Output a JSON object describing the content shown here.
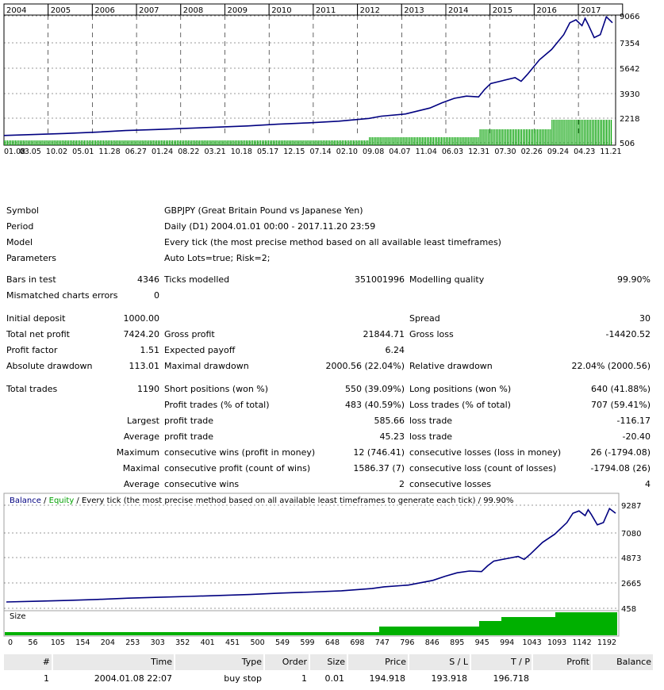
{
  "top_chart": {
    "years": [
      "2004",
      "2005",
      "2006",
      "2007",
      "2008",
      "2009",
      "2010",
      "2011",
      "2012",
      "2013",
      "2014",
      "2015",
      "2016",
      "2017"
    ],
    "y_ticks": [
      "9066",
      "7354",
      "5642",
      "3930",
      "2218",
      "506"
    ],
    "x_ticks": [
      "01.08",
      "03.05",
      "10.02",
      "05.01",
      "11.28",
      "06.27",
      "01.24",
      "08.22",
      "03.21",
      "10.18",
      "05.17",
      "12.15",
      "07.14",
      "02.10",
      "09.08",
      "04.07",
      "11.04",
      "06.03",
      "12.31",
      "07.30",
      "02.26",
      "09.24",
      "04.23",
      "11.21"
    ],
    "line_color": "#000080",
    "bar_color": "#00a000"
  },
  "report": {
    "symbol_label": "Symbol",
    "symbol_value": "GBPJPY (Great Britain Pound vs Japanese Yen)",
    "period_label": "Period",
    "period_value": "Daily (D1) 2004.01.01 00:00 - 2017.11.20 23:59",
    "model_label": "Model",
    "model_value": "Every tick (the most precise method based on all available least timeframes)",
    "parameters_label": "Parameters",
    "parameters_value": "Auto Lots=true; Risk=2;",
    "bars_label": "Bars in test",
    "bars_value": "4346",
    "ticks_label": "Ticks modelled",
    "ticks_value": "351001996",
    "quality_label": "Modelling quality",
    "quality_value": "99.90%",
    "mismatch_label": "Mismatched charts errors",
    "mismatch_value": "0",
    "initial_deposit_label": "Initial deposit",
    "initial_deposit_value": "1000.00",
    "spread_label": "Spread",
    "spread_value": "30",
    "net_profit_label": "Total net profit",
    "net_profit_value": "7424.20",
    "gross_profit_label": "Gross profit",
    "gross_profit_value": "21844.71",
    "gross_loss_label": "Gross loss",
    "gross_loss_value": "-14420.52",
    "profit_factor_label": "Profit factor",
    "profit_factor_value": "1.51",
    "expected_payoff_label": "Expected payoff",
    "expected_payoff_value": "6.24",
    "abs_drawdown_label": "Absolute drawdown",
    "abs_drawdown_value": "113.01",
    "max_drawdown_label": "Maximal drawdown",
    "max_drawdown_value": "2000.56 (22.04%)",
    "rel_drawdown_label": "Relative drawdown",
    "rel_drawdown_value": "22.04% (2000.56)",
    "total_trades_label": "Total trades",
    "total_trades_value": "1190",
    "short_label": "Short positions (won %)",
    "short_value": "550 (39.09%)",
    "long_label": "Long positions (won %)",
    "long_value": "640 (41.88%)",
    "profit_trades_label": "Profit trades (% of total)",
    "profit_trades_value": "483 (40.59%)",
    "loss_trades_label": "Loss trades (% of total)",
    "loss_trades_value": "707 (59.41%)",
    "largest_label": "Largest",
    "largest_profit_label": "profit trade",
    "largest_profit_value": "585.66",
    "largest_loss_label": "loss trade",
    "largest_loss_value": "-116.17",
    "average_label": "Average",
    "average_profit_label": "profit trade",
    "average_profit_value": "45.23",
    "average_loss_label": "loss trade",
    "average_loss_value": "-20.40",
    "maximum_label": "Maximum",
    "max_cons_wins_label": "consecutive wins (profit in money)",
    "max_cons_wins_value": "12 (746.41)",
    "max_cons_losses_label": "consecutive losses (loss in money)",
    "max_cons_losses_value": "26 (-1794.08)",
    "maximal_label": "Maximal",
    "maximal_cons_profit_label": "consecutive profit (count of wins)",
    "maximal_cons_profit_value": "1586.37 (7)",
    "maximal_cons_loss_label": "consecutive loss (count of losses)",
    "maximal_cons_loss_value": "-1794.08 (26)",
    "average2_label": "Average",
    "avg_cons_wins_label": "consecutive wins",
    "avg_cons_wins_value": "2",
    "avg_cons_losses_label": "consecutive losses",
    "avg_cons_losses_value": "4"
  },
  "bottom_chart": {
    "legend_balance": "Balance",
    "legend_sep": " / ",
    "legend_equity": "Equity",
    "legend_rest": " / Every tick (the most precise method based on all available least timeframes to generate each tick) / 99.90%",
    "y_ticks": [
      "9287",
      "7080",
      "4873",
      "2665",
      "458"
    ],
    "size_label": "Size",
    "x_ticks": [
      "0",
      "56",
      "105",
      "154",
      "204",
      "253",
      "303",
      "352",
      "401",
      "451",
      "500",
      "549",
      "599",
      "648",
      "698",
      "747",
      "796",
      "846",
      "895",
      "945",
      "994",
      "1043",
      "1093",
      "1142",
      "1192"
    ],
    "balance_color": "#000080",
    "equity_color": "#00a000",
    "size_color": "#00b000"
  },
  "trades_table": {
    "headers": [
      "#",
      "Time",
      "Type",
      "Order",
      "Size",
      "Price",
      "S / L",
      "T / P",
      "Profit",
      "Balance"
    ],
    "rows": [
      [
        "1",
        "2004.01.08 22:07",
        "buy stop",
        "1",
        "0.01",
        "194.918",
        "193.918",
        "196.718",
        "",
        ""
      ]
    ]
  }
}
